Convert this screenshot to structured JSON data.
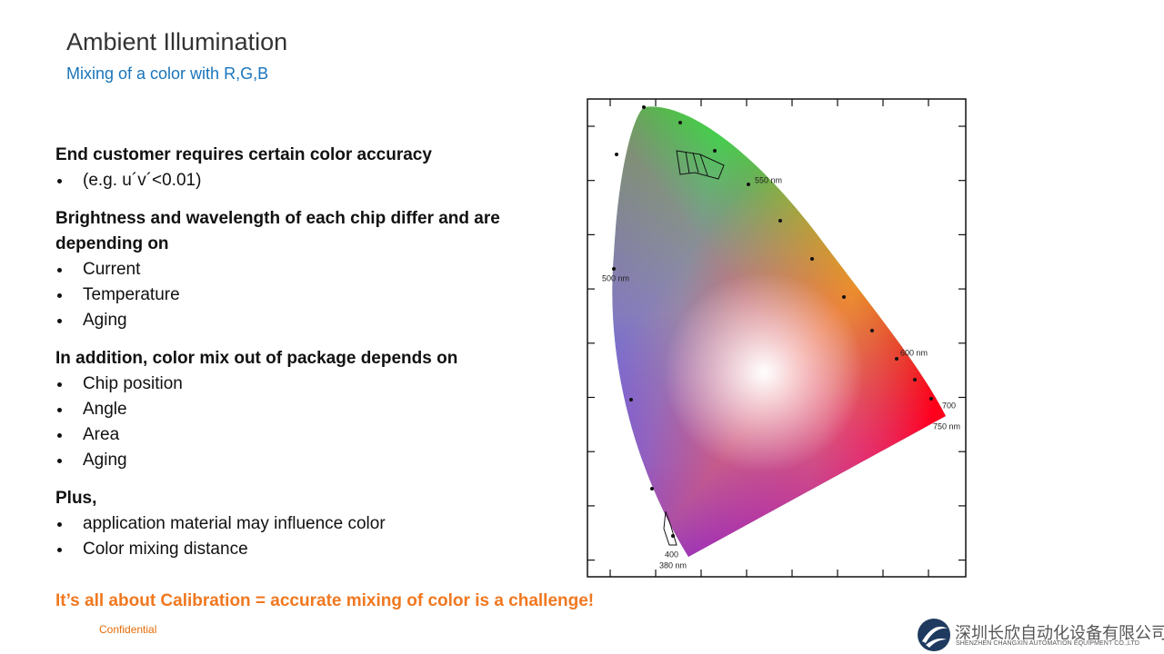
{
  "header": {
    "title": "Ambient Illumination",
    "subtitle": "Mixing of a color with R,G,B"
  },
  "sections": [
    {
      "heading": "End customer requires certain color accuracy",
      "bullets": [
        "(e.g. u´v´<0.01)"
      ]
    },
    {
      "heading": "Brightness and wavelength of each chip differ and are depending on",
      "bullets": [
        "Current",
        "Temperature",
        "Aging"
      ]
    },
    {
      "heading": "In addition, color mix out of package depends on",
      "bullets": [
        "Chip position",
        "Angle",
        "Area",
        "Aging"
      ]
    },
    {
      "heading": "Plus,",
      "bullets": [
        "application material may influence color",
        "Color mixing distance"
      ]
    }
  ],
  "callout": "It’s all about Calibration = accurate mixing of color is a challenge!",
  "diagram": {
    "wavelength_labels": [
      "550 nm",
      "500 nm",
      "600 nm",
      "700",
      "750 nm",
      "400",
      "380 nm"
    ]
  },
  "footer": {
    "confidential": "Confidential",
    "logo_cn": "深圳长欣自动化设备有限公司",
    "logo_en": "SHENZHEN CHANGXIN AUTOMATION EQUIPMENT CO.,LTD"
  }
}
